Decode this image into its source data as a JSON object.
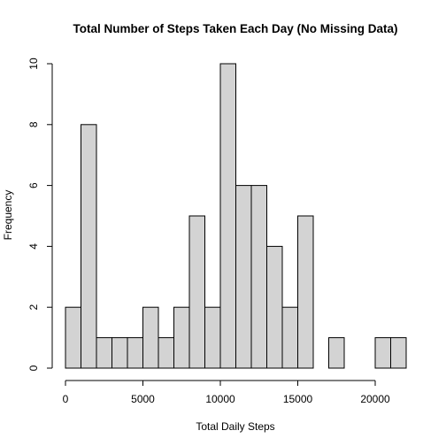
{
  "chart_data": {
    "type": "bar",
    "title": "Total Number of Steps Taken Each Day (No Missing Data)",
    "xlabel": "Total Daily Steps",
    "ylabel": "Frequency",
    "bin_width": 1000,
    "bins": [
      {
        "start": 0,
        "end": 1000,
        "count": 2
      },
      {
        "start": 1000,
        "end": 2000,
        "count": 8
      },
      {
        "start": 2000,
        "end": 3000,
        "count": 1
      },
      {
        "start": 3000,
        "end": 4000,
        "count": 1
      },
      {
        "start": 4000,
        "end": 5000,
        "count": 1
      },
      {
        "start": 5000,
        "end": 6000,
        "count": 2
      },
      {
        "start": 6000,
        "end": 7000,
        "count": 1
      },
      {
        "start": 7000,
        "end": 8000,
        "count": 2
      },
      {
        "start": 8000,
        "end": 9000,
        "count": 5
      },
      {
        "start": 9000,
        "end": 10000,
        "count": 2
      },
      {
        "start": 10000,
        "end": 11000,
        "count": 10
      },
      {
        "start": 11000,
        "end": 12000,
        "count": 6
      },
      {
        "start": 12000,
        "end": 13000,
        "count": 6
      },
      {
        "start": 13000,
        "end": 14000,
        "count": 4
      },
      {
        "start": 14000,
        "end": 15000,
        "count": 2
      },
      {
        "start": 15000,
        "end": 16000,
        "count": 5
      },
      {
        "start": 16000,
        "end": 17000,
        "count": 0
      },
      {
        "start": 17000,
        "end": 18000,
        "count": 1
      },
      {
        "start": 18000,
        "end": 19000,
        "count": 0
      },
      {
        "start": 19000,
        "end": 20000,
        "count": 0
      },
      {
        "start": 20000,
        "end": 21000,
        "count": 1
      },
      {
        "start": 21000,
        "end": 22000,
        "count": 1
      }
    ],
    "xlim": [
      0,
      22000
    ],
    "ylim": [
      0,
      10
    ],
    "x_ticks": [
      0,
      5000,
      10000,
      15000,
      20000
    ],
    "x_tick_labels": [
      "0",
      "5000",
      "10000",
      "15000",
      "20000"
    ],
    "y_ticks": [
      0,
      2,
      4,
      6,
      8,
      10
    ],
    "y_tick_labels": [
      "0",
      "2",
      "4",
      "6",
      "8",
      "10"
    ],
    "bar_fill": "#d3d3d3",
    "bar_stroke": "#000000",
    "grid": false,
    "legend": "none"
  }
}
